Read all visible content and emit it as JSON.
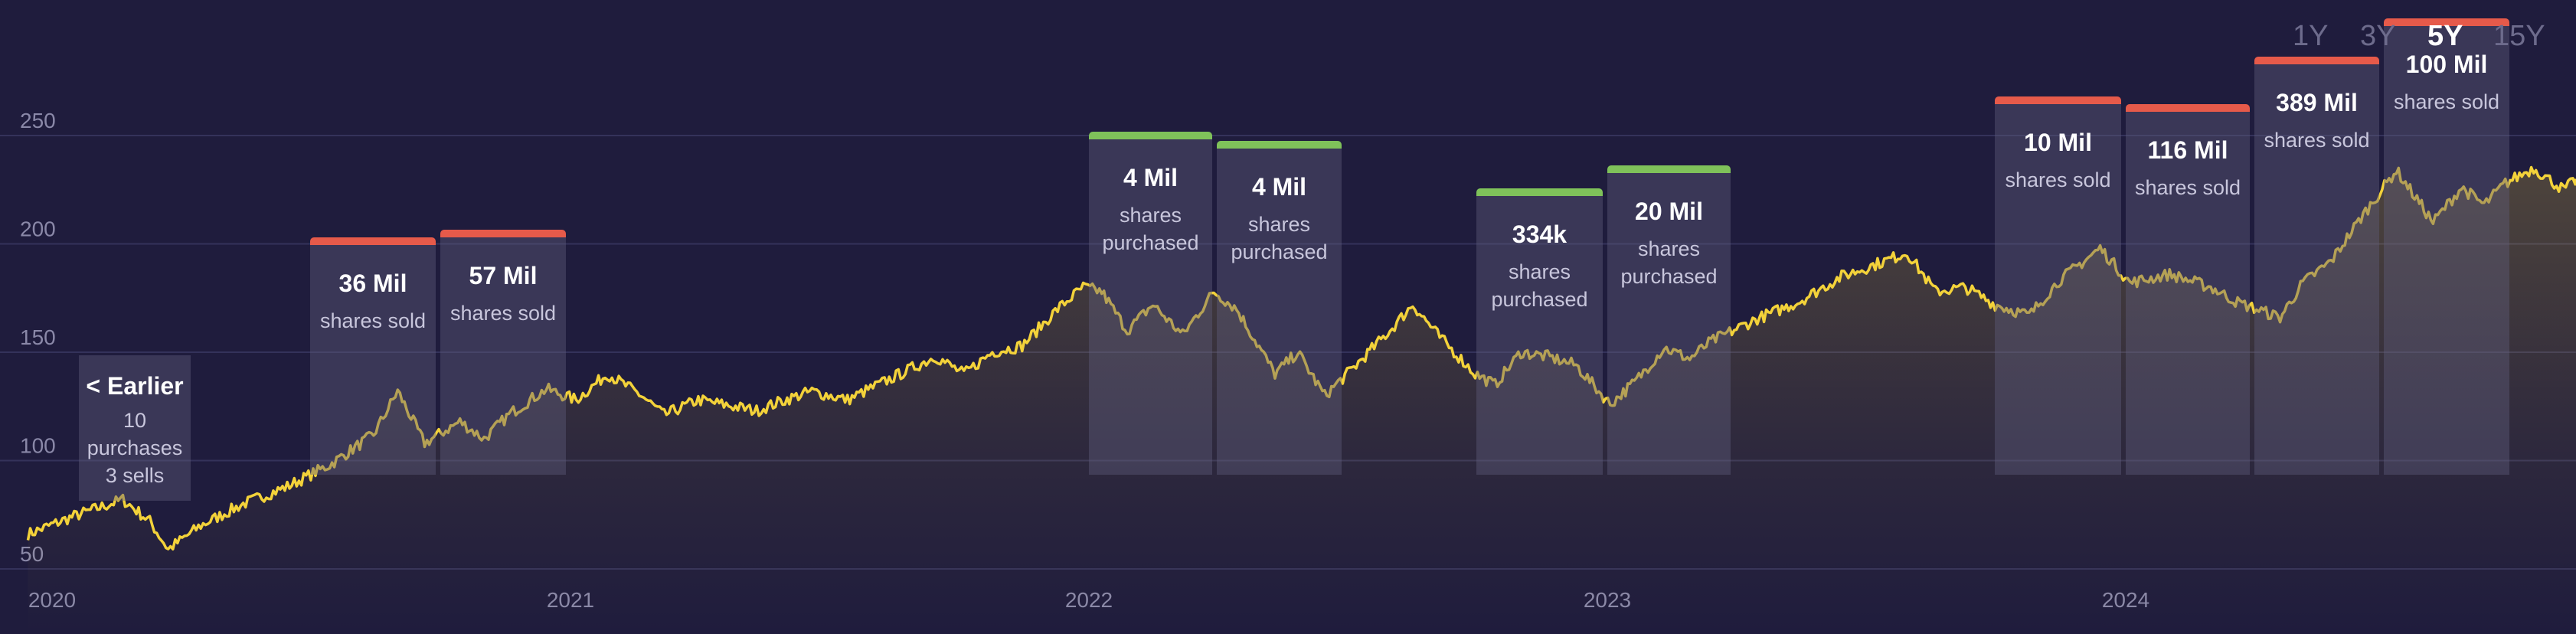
{
  "chart_data": {
    "type": "line",
    "title": "",
    "xlabel": "",
    "ylabel": "",
    "x_ticks": [
      "2020",
      "2021",
      "2022",
      "2023",
      "2024"
    ],
    "y_ticks": [
      50,
      100,
      150,
      200,
      250
    ],
    "ylim": [
      45,
      265
    ],
    "xlim": [
      "2020-01-01",
      "2024-11-15"
    ],
    "grid": true,
    "line_color": "#f3d23a",
    "area_fill": "#f3d23a",
    "series": [
      {
        "values": [
          [
            "2019-12-15",
            66
          ],
          [
            "2020-01-15",
            74
          ],
          [
            "2020-02-20",
            82
          ],
          [
            "2020-03-10",
            72
          ],
          [
            "2020-03-23",
            59
          ],
          [
            "2020-04-15",
            70
          ],
          [
            "2020-05-15",
            80
          ],
          [
            "2020-06-15",
            88
          ],
          [
            "2020-07-15",
            98
          ],
          [
            "2020-08-15",
            112
          ],
          [
            "2020-09-01",
            132
          ],
          [
            "2020-09-20",
            108
          ],
          [
            "2020-10-15",
            118
          ],
          [
            "2020-11-01",
            110
          ],
          [
            "2020-11-20",
            122
          ],
          [
            "2020-12-15",
            133
          ],
          [
            "2021-01-05",
            128
          ],
          [
            "2021-01-27",
            140
          ],
          [
            "2021-02-20",
            130
          ],
          [
            "2021-03-08",
            121
          ],
          [
            "2021-04-01",
            128
          ],
          [
            "2021-05-12",
            123
          ],
          [
            "2021-06-01",
            128
          ],
          [
            "2021-06-20",
            132
          ],
          [
            "2021-07-15",
            128
          ],
          [
            "2021-08-15",
            138
          ],
          [
            "2021-09-15",
            148
          ],
          [
            "2021-10-05",
            140
          ],
          [
            "2021-10-25",
            150
          ],
          [
            "2021-11-15",
            153
          ],
          [
            "2021-12-10",
            170
          ],
          [
            "2021-12-28",
            180
          ],
          [
            "2022-01-10",
            178
          ],
          [
            "2022-01-28",
            160
          ],
          [
            "2022-02-15",
            172
          ],
          [
            "2022-03-08",
            158
          ],
          [
            "2022-03-30",
            178
          ],
          [
            "2022-04-15",
            170
          ],
          [
            "2022-05-12",
            140
          ],
          [
            "2022-05-28",
            150
          ],
          [
            "2022-06-16",
            130
          ],
          [
            "2022-07-05",
            142
          ],
          [
            "2022-08-01",
            160
          ],
          [
            "2022-08-17",
            172
          ],
          [
            "2022-09-05",
            157
          ],
          [
            "2022-09-30",
            140
          ],
          [
            "2022-10-14",
            135
          ],
          [
            "2022-11-01",
            150
          ],
          [
            "2022-11-20",
            148
          ],
          [
            "2022-12-10",
            144
          ],
          [
            "2023-01-03",
            126
          ],
          [
            "2023-01-20",
            136
          ],
          [
            "2023-02-10",
            152
          ],
          [
            "2023-02-28",
            147
          ],
          [
            "2023-03-15",
            155
          ],
          [
            "2023-04-15",
            165
          ],
          [
            "2023-05-15",
            173
          ],
          [
            "2023-06-15",
            185
          ],
          [
            "2023-07-15",
            192
          ],
          [
            "2023-07-31",
            196
          ],
          [
            "2023-08-20",
            178
          ],
          [
            "2023-09-10",
            180
          ],
          [
            "2023-10-01",
            172
          ],
          [
            "2023-10-25",
            167
          ],
          [
            "2023-11-15",
            183
          ],
          [
            "2023-12-14",
            198
          ],
          [
            "2024-01-04",
            182
          ],
          [
            "2024-02-01",
            186
          ],
          [
            "2024-03-01",
            180
          ],
          [
            "2024-03-20",
            173
          ],
          [
            "2024-04-19",
            166
          ],
          [
            "2024-05-05",
            182
          ],
          [
            "2024-05-25",
            192
          ],
          [
            "2024-06-15",
            212
          ],
          [
            "2024-07-10",
            234
          ],
          [
            "2024-08-05",
            210
          ],
          [
            "2024-08-25",
            226
          ],
          [
            "2024-09-10",
            218
          ],
          [
            "2024-09-25",
            228
          ],
          [
            "2024-10-15",
            235
          ],
          [
            "2024-11-05",
            225
          ],
          [
            "2024-11-15",
            230
          ]
        ]
      }
    ]
  },
  "range_tabs": {
    "items": [
      "1Y",
      "3Y",
      "5Y",
      "15Y"
    ],
    "active": "5Y"
  },
  "trades": [
    {
      "id": "earlier",
      "amount": "< Earlier",
      "action": "10 purchases",
      "action2": "3 sells",
      "type": "summary",
      "start": "2020-01-20",
      "end": "2020-04-10",
      "bar_color": ""
    },
    {
      "id": "2020-q3",
      "amount": "36 Mil",
      "action": "shares sold",
      "type": "sell",
      "start": "2020-07-01",
      "end": "2020-09-30",
      "bar_color": "#e65a4a"
    },
    {
      "id": "2020-q4",
      "amount": "57 Mil",
      "action": "shares sold",
      "type": "sell",
      "start": "2020-10-01",
      "end": "2020-12-31",
      "bar_color": "#e65a4a"
    },
    {
      "id": "2022-q1",
      "amount": "4 Mil",
      "action": "shares purchased",
      "type": "buy",
      "start": "2022-01-01",
      "end": "2022-03-31",
      "bar_color": "#7fc25a"
    },
    {
      "id": "2022-q2",
      "amount": "4 Mil",
      "action": "shares purchased",
      "type": "buy",
      "start": "2022-04-01",
      "end": "2022-06-30",
      "bar_color": "#7fc25a"
    },
    {
      "id": "2022-q4",
      "amount": "334k",
      "action": "shares purchased",
      "type": "buy",
      "start": "2022-10-01",
      "end": "2022-12-31",
      "bar_color": "#7fc25a"
    },
    {
      "id": "2023-q1",
      "amount": "20 Mil",
      "action": "shares purchased",
      "type": "buy",
      "start": "2023-01-01",
      "end": "2023-03-31",
      "bar_color": "#7fc25a"
    },
    {
      "id": "2023-q4",
      "amount": "10 Mil",
      "action": "shares sold",
      "type": "sell",
      "start": "2023-10-01",
      "end": "2023-12-31",
      "bar_color": "#e65a4a"
    },
    {
      "id": "2024-q1",
      "amount": "116 Mil",
      "action": "shares sold",
      "type": "sell",
      "start": "2024-01-01",
      "end": "2024-03-31",
      "bar_color": "#e65a4a"
    },
    {
      "id": "2024-q2",
      "amount": "389 Mil",
      "action": "shares sold",
      "type": "sell",
      "start": "2024-04-01",
      "end": "2024-06-30",
      "bar_color": "#e65a4a"
    },
    {
      "id": "2024-q3",
      "amount": "100 Mil",
      "action": "shares sold",
      "type": "sell",
      "start": "2024-07-01",
      "end": "2024-09-30",
      "bar_color": "#e65a4a"
    }
  ]
}
